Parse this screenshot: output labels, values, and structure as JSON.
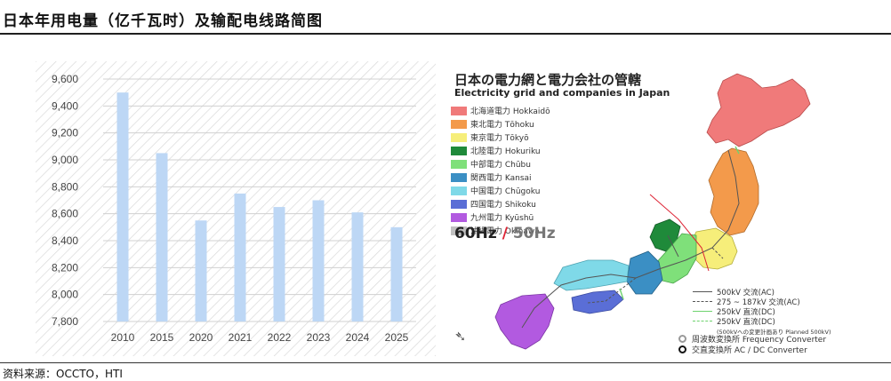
{
  "page": {
    "title": "日本年用电量（亿千瓦时）及输配电线路简图",
    "source": "资料来源：OCCTO，HTI"
  },
  "chart_data": {
    "type": "bar",
    "categories": [
      "2010",
      "2015",
      "2020",
      "2021",
      "2022",
      "2023",
      "2024",
      "2025"
    ],
    "values": [
      9500,
      9050,
      8550,
      8750,
      8650,
      8700,
      8610,
      8500
    ],
    "yticks": [
      "9,600",
      "9,400",
      "9,200",
      "9,000",
      "8,800",
      "8,600",
      "8,400",
      "8,200",
      "8,000",
      "7,800"
    ],
    "ylim": [
      7800,
      9600
    ],
    "title": "",
    "xlabel": "",
    "ylabel": "",
    "bar_color": "#bdd7f5",
    "grid": true
  },
  "map": {
    "title_jp": "日本の電力網と電力会社の管轄",
    "title_en": "Electricity grid and companies in Japan",
    "companies": [
      {
        "label": "北海道電力 Hokkaidō",
        "color": "#f07a7a"
      },
      {
        "label": "東北電力 Tōhoku",
        "color": "#f39a4b"
      },
      {
        "label": "東京電力 Tōkyō",
        "color": "#f6ee7a"
      },
      {
        "label": "北陸電力 Hokuriku",
        "color": "#1f8a3a"
      },
      {
        "label": "中部電力 Chūbu",
        "color": "#7fe07a"
      },
      {
        "label": "関西電力 Kansai",
        "color": "#3b8fc4"
      },
      {
        "label": "中国電力 Chūgoku",
        "color": "#7fd9e8"
      },
      {
        "label": "四国電力 Shikoku",
        "color": "#5a6ed6"
      },
      {
        "label": "九州電力 Kyūshū",
        "color": "#b25ae0"
      },
      {
        "label": "沖縄電力 Okinawa",
        "color": "#c0c0c0"
      }
    ],
    "hz_60": "60Hz",
    "hz_sep": "/",
    "hz_50": "50Hz",
    "lines": [
      {
        "label": "500kV 交流(AC)",
        "color": "#555",
        "style": "solid"
      },
      {
        "label": "275 ~ 187kV 交流(AC)",
        "color": "#555",
        "style": "dashed"
      },
      {
        "label": "250kV 直流(DC)",
        "color": "#6fd36f",
        "style": "solid"
      },
      {
        "label": "250kV 直流(DC)",
        "color": "#6fd36f",
        "style": "dashed"
      },
      {
        "label": "(500kVへの変更計画あり Planned 500kV)",
        "color": "",
        "style": "none"
      }
    ],
    "converters": [
      {
        "label": "周波数変換所 Frequency Converter",
        "border": "#999"
      },
      {
        "label": "交直変換所 AC / DC Converter",
        "border": "#111"
      }
    ]
  }
}
